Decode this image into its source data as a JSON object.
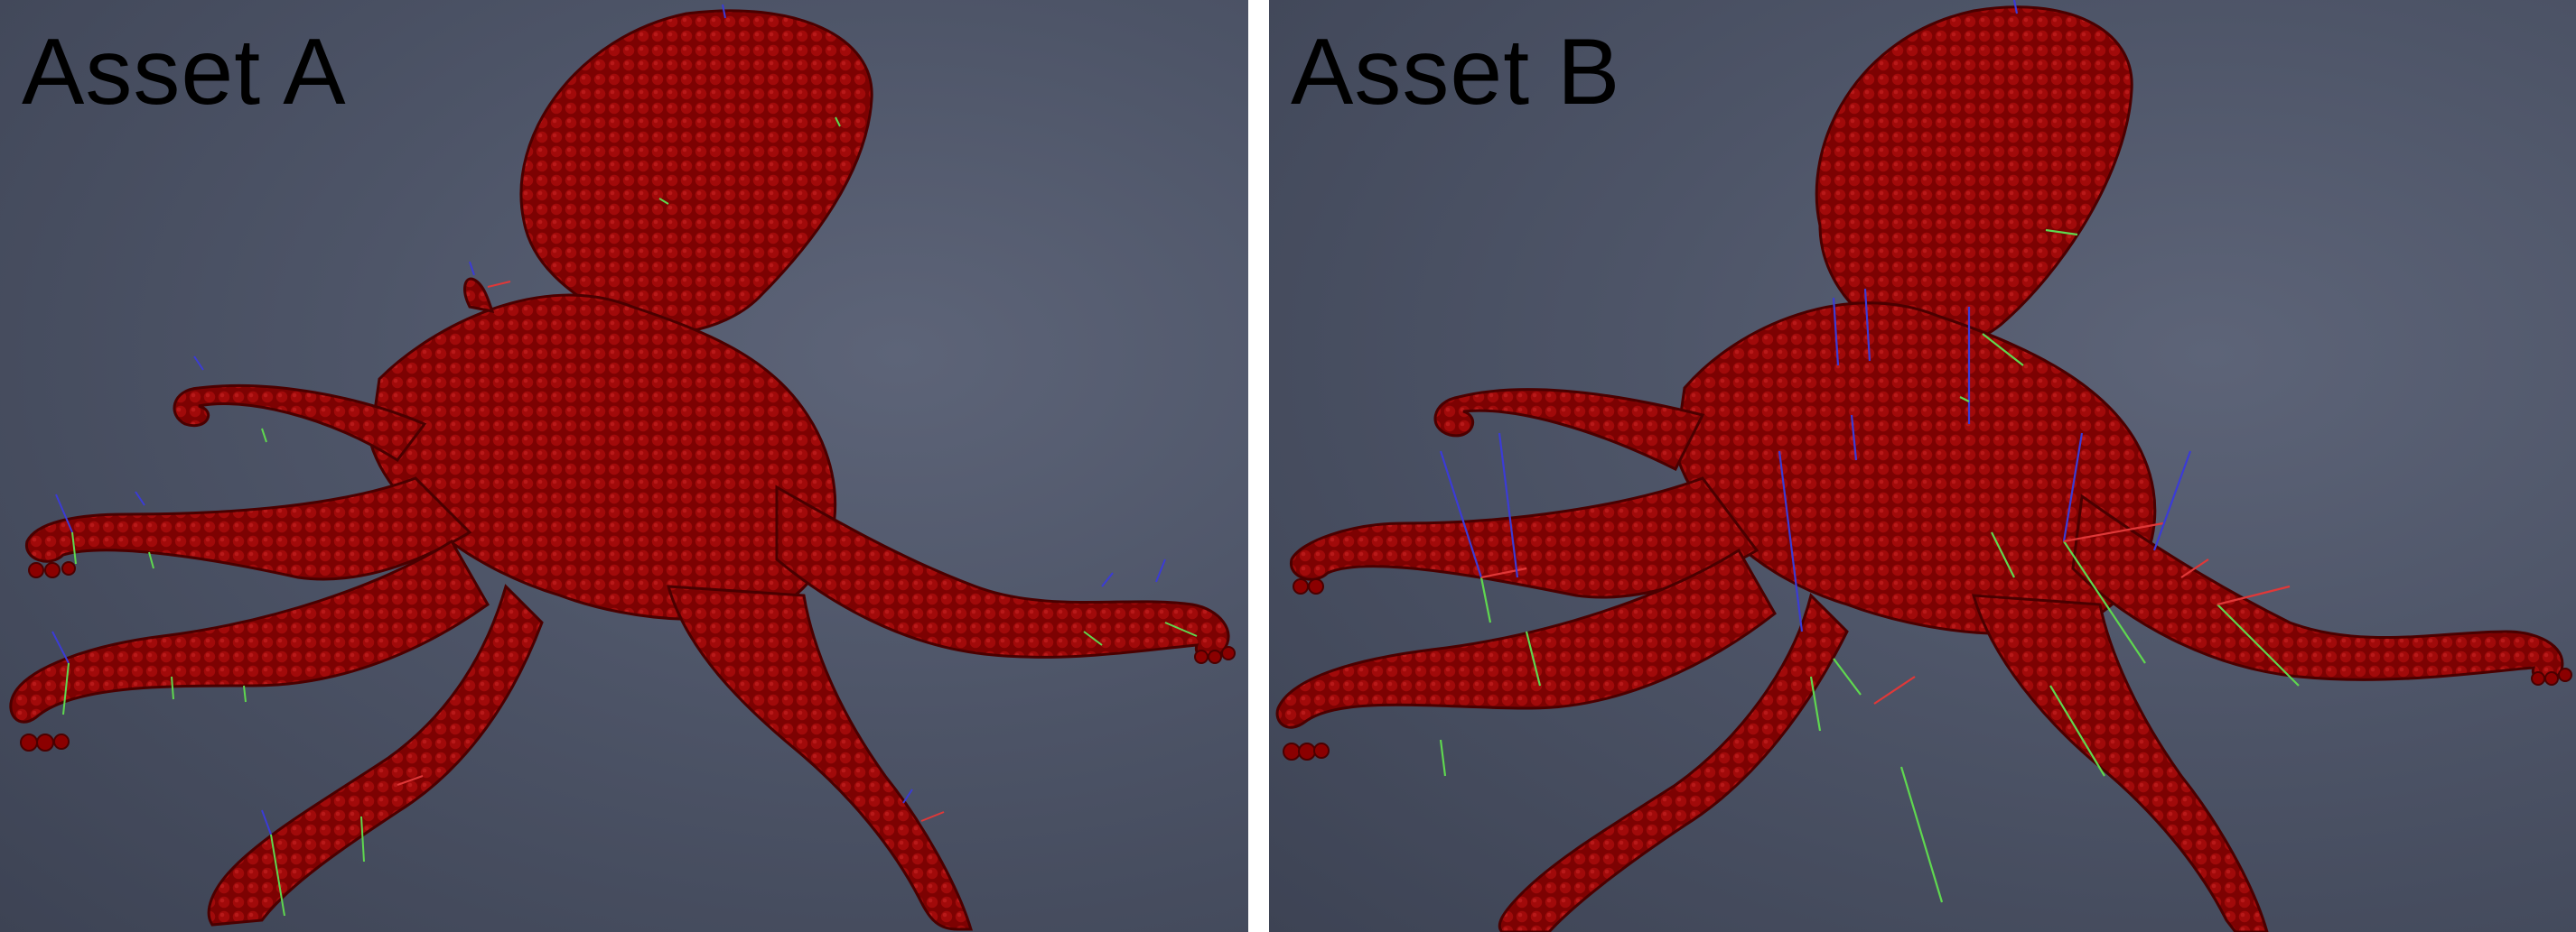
{
  "panels": [
    {
      "id": "a",
      "label": "Asset A"
    },
    {
      "id": "b",
      "label": "Asset B"
    }
  ],
  "colors": {
    "background_dark": "#3d4354",
    "background_light": "#5d6478",
    "octopus_body": "#8b0000",
    "octopus_shade": "#5a0000",
    "axis_x": "#e03838",
    "axis_y": "#5fd84f",
    "axis_z": "#3b3bd6",
    "divider": "#ffffff"
  },
  "icons": [
    "octopus-particle-model",
    "orientation-gizmo"
  ]
}
